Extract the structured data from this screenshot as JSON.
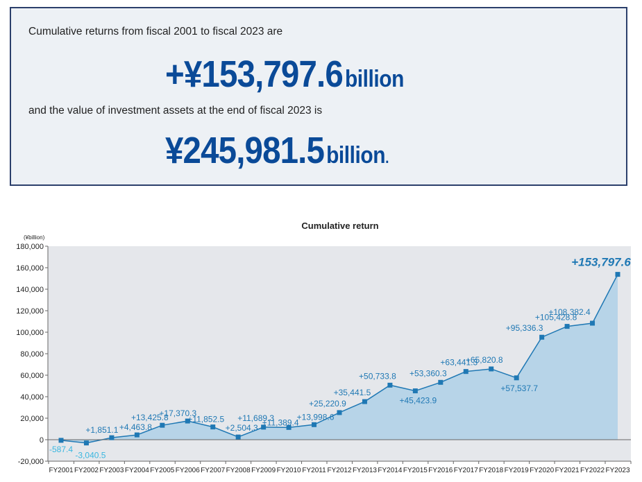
{
  "summary": {
    "line1": "Cumulative returns from fiscal 2001 to fiscal 2023 are",
    "returns_value": "+¥153,797.6",
    "returns_unit": "billion",
    "line2": "and the value of investment assets at the end of fiscal 2023 is",
    "assets_value": "¥245,981.5",
    "assets_unit": "billion",
    "assets_period": "."
  },
  "chart_data": {
    "type": "area",
    "title": "Cumulative return",
    "unit_label": "(¥billion)",
    "xlabel": "",
    "ylabel": "",
    "ylim": [
      -20000,
      180000
    ],
    "yticks": [
      180000,
      160000,
      140000,
      120000,
      100000,
      80000,
      60000,
      40000,
      20000,
      0,
      -20000
    ],
    "ytick_labels": [
      "180,000",
      "160,000",
      "140,000",
      "120,000",
      "100,000",
      "80,000",
      "60,000",
      "40,000",
      "20,000",
      "0",
      "-20,000"
    ],
    "grid": false,
    "categories": [
      "FY2001",
      "FY2002",
      "FY2003",
      "FY2004",
      "FY2005",
      "FY2006",
      "FY2007",
      "FY2008",
      "FY2009",
      "FY2010",
      "FY2011",
      "FY2012",
      "FY2013",
      "FY2014",
      "FY2015",
      "FY2016",
      "FY2017",
      "FY2018",
      "FY2019",
      "FY2020",
      "FY2021",
      "FY2022",
      "FY2023"
    ],
    "values": [
      -587.4,
      -3040.5,
      1851.1,
      4463.8,
      13425.8,
      17370.3,
      11852.5,
      2504.3,
      11689.3,
      11389.4,
      13998.6,
      25220.9,
      35441.5,
      50733.8,
      45423.9,
      53360.3,
      63441.3,
      65820.8,
      57537.7,
      95336.3,
      105428.8,
      108382.4,
      153797.6
    ],
    "data_labels": [
      "-587.4",
      "-3,040.5",
      "+1,851.1",
      "+4,463.8",
      "+13,425.8",
      "+17,370.3",
      "+11,852.5",
      "+2,504.3",
      "+11,689.3",
      "+11,389.4",
      "+13,998.6",
      "+25,220.9",
      "+35,441.5",
      "+50,733.8",
      "+45,423.9",
      "+53,360.3",
      "+63,441.3",
      "+65,820.8",
      "+57,537.7",
      "+95,336.3",
      "+105,428.8",
      "+108,382.4",
      "+153,797.6"
    ],
    "colors": {
      "line": "#1f78b4",
      "area": "#b7d4e8",
      "plot_background": "#e5e7eb",
      "label_positive": "#1f78b4",
      "label_negative": "#3ab7e0"
    }
  }
}
